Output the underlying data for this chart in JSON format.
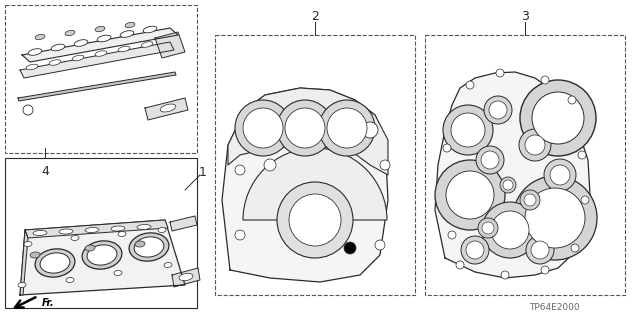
{
  "bg_color": "#ffffff",
  "line_color": "#2a2a2a",
  "dashed_color": "#555555",
  "label_color": "#111111",
  "part_number_text": "TP64E2000",
  "fig_width": 6.4,
  "fig_height": 3.19,
  "dpi": 100
}
